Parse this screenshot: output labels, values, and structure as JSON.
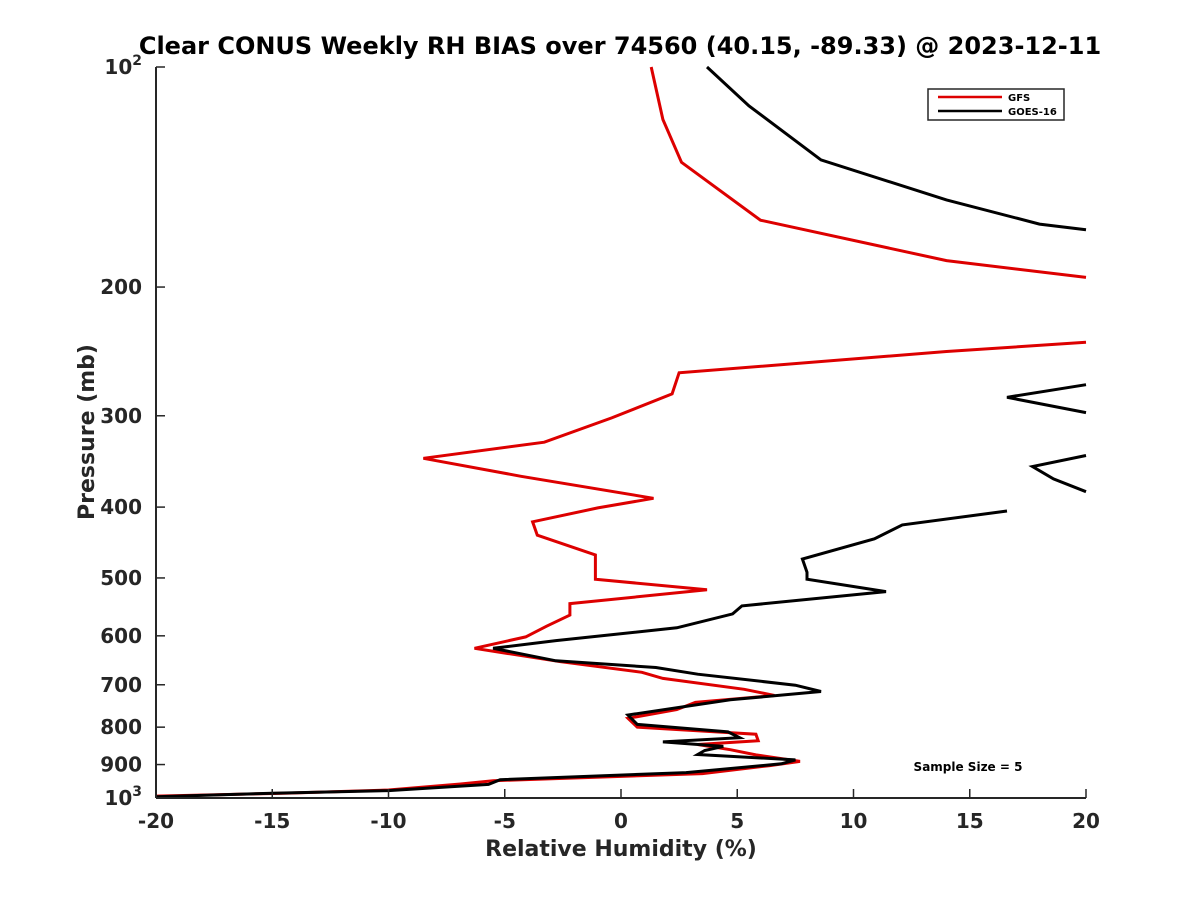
{
  "chart_data": {
    "type": "line",
    "title": "Clear CONUS Weekly RH BIAS over 74560 (40.15, -89.33) @ 2023-12-11",
    "xlabel": "Relative Humidity (%)",
    "ylabel": "Pressure (mb)",
    "xlim": [
      -20,
      20
    ],
    "ylim": [
      100,
      1000
    ],
    "y_scale": "log",
    "y_reversed": true,
    "x_ticks": [
      "-20",
      "-15",
      "-10",
      "-5",
      "0",
      "5",
      "10",
      "15",
      "20"
    ],
    "y_ticks": [
      {
        "value": 100,
        "base": "10",
        "exp": "2"
      },
      {
        "value": 200,
        "label": "200"
      },
      {
        "value": 300,
        "label": "300"
      },
      {
        "value": 400,
        "label": "400"
      },
      {
        "value": 500,
        "label": "500"
      },
      {
        "value": 600,
        "label": "600"
      },
      {
        "value": 700,
        "label": "700"
      },
      {
        "value": 800,
        "label": "800"
      },
      {
        "value": 900,
        "label": "900"
      },
      {
        "value": 1000,
        "base": "10",
        "exp": "3"
      }
    ],
    "grid": false,
    "legend_position": "top-right",
    "annotation": "Sample Size = 5",
    "series": [
      {
        "name": "GFS",
        "color": "#dd0000",
        "segments": [
          [
            [
              1.3,
              100
            ],
            [
              1.8,
              118
            ],
            [
              2.6,
              135
            ],
            [
              6.0,
              162
            ],
            [
              14,
              184
            ],
            [
              20,
              194
            ]
          ],
          [
            [
              20,
              238
            ],
            [
              14,
              245
            ],
            [
              2.5,
              262
            ],
            [
              2.2,
              280
            ],
            [
              -0.4,
              302
            ],
            [
              -3.3,
              326
            ],
            [
              -8.5,
              343
            ],
            [
              -4.3,
              363
            ],
            [
              1.4,
              389
            ],
            [
              -1.0,
              401
            ],
            [
              -3.8,
              419
            ],
            [
              -3.6,
              437
            ],
            [
              -1.1,
              465
            ],
            [
              -1.1,
              502
            ],
            [
              3.7,
              519
            ],
            [
              -2.2,
              542
            ],
            [
              -2.2,
              562
            ],
            [
              -3.2,
              582
            ],
            [
              -4.1,
              602
            ],
            [
              -6.3,
              624
            ],
            [
              -2.6,
              651
            ],
            [
              0.9,
              673
            ],
            [
              1.8,
              686
            ],
            [
              5.3,
              710
            ],
            [
              6.6,
              724
            ],
            [
              3.2,
              740
            ],
            [
              2.4,
              757
            ],
            [
              0.3,
              778
            ],
            [
              0.7,
              800
            ],
            [
              5.8,
              818
            ],
            [
              5.9,
              835
            ],
            [
              3.3,
              845
            ],
            [
              4.7,
              859
            ],
            [
              5.8,
              873
            ],
            [
              7.7,
              891
            ],
            [
              6.4,
              903
            ],
            [
              3.5,
              926
            ],
            [
              -5.5,
              947
            ],
            [
              -6.9,
              957
            ],
            [
              -10,
              975
            ],
            [
              -14.5,
              985
            ],
            [
              -20,
              994
            ]
          ]
        ]
      },
      {
        "name": "GOES-16",
        "color": "#000000",
        "segments": [
          [
            [
              3.7,
              100
            ],
            [
              5.5,
              113
            ],
            [
              8.6,
              134
            ],
            [
              14,
              152
            ],
            [
              18,
              164
            ],
            [
              20,
              167
            ]
          ],
          [
            [
              20,
              272
            ],
            [
              16.6,
              283
            ],
            [
              20,
              297
            ]
          ],
          [
            [
              20,
              340
            ],
            [
              17.7,
              352
            ],
            [
              18.6,
              366
            ],
            [
              20,
              381
            ]
          ],
          [
            [
              16.6,
              405
            ],
            [
              12.1,
              423
            ],
            [
              10.9,
              442
            ],
            [
              7.8,
              471
            ],
            [
              8.0,
              491
            ],
            [
              8.0,
              502
            ],
            [
              11.4,
              522
            ],
            [
              5.2,
              546
            ],
            [
              4.8,
              560
            ],
            [
              2.4,
              585
            ],
            [
              -2.8,
              609
            ],
            [
              -5.5,
              624
            ],
            [
              -2.8,
              649
            ],
            [
              1.5,
              663
            ],
            [
              3.3,
              677
            ],
            [
              7.5,
              701
            ],
            [
              8.6,
              715
            ],
            [
              4.7,
              734
            ],
            [
              0.3,
              770
            ],
            [
              0.7,
              793
            ],
            [
              4.6,
              812
            ],
            [
              5.1,
              827
            ],
            [
              1.8,
              838
            ],
            [
              4.4,
              850
            ],
            [
              3.6,
              861
            ],
            [
              3.3,
              872
            ],
            [
              7.5,
              887
            ],
            [
              6.9,
              898
            ],
            [
              2.8,
              923
            ],
            [
              -5.2,
              944
            ],
            [
              -5.7,
              958
            ],
            [
              -10,
              977
            ],
            [
              -15,
              985
            ],
            [
              -20,
              996
            ]
          ]
        ]
      }
    ]
  }
}
